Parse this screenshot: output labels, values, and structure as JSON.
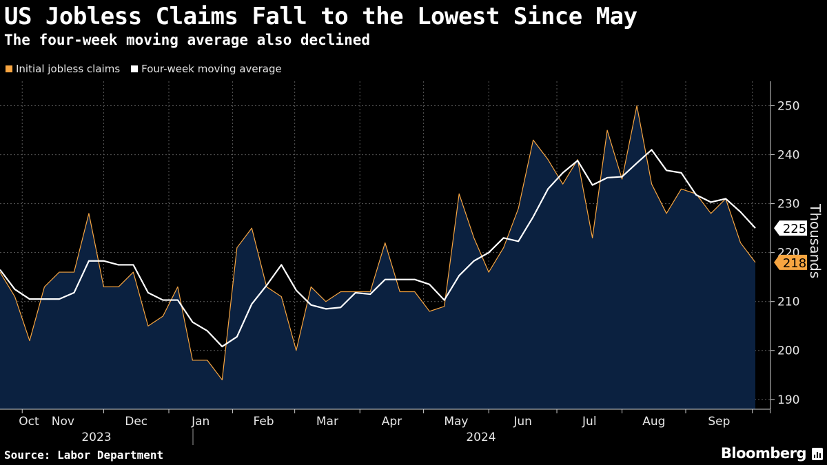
{
  "chart_data": {
    "type": "line",
    "title": "US Jobless Claims Fall to the Lowest Since May",
    "subtitle": "The four-week moving average also declined",
    "ylabel": "Thousands",
    "ylim": [
      188,
      255
    ],
    "yticks": [
      190,
      200,
      210,
      220,
      230,
      240,
      250
    ],
    "month_labels": [
      "Oct",
      "Nov",
      "Dec",
      "Jan",
      "Feb",
      "Mar",
      "Apr",
      "May",
      "Jun",
      "Jul",
      "Aug",
      "Sep"
    ],
    "year_labels": [
      "2023",
      "2024"
    ],
    "series": [
      {
        "name": "Initial jobless claims",
        "color": "#f7a541",
        "last_value_label": "218",
        "values": [
          216,
          211,
          202,
          213,
          216,
          216,
          228,
          213,
          213,
          216,
          205,
          207,
          213,
          198,
          198,
          194,
          221,
          225,
          213,
          211,
          200,
          213,
          210,
          212,
          212,
          212,
          222,
          212,
          212,
          208,
          209,
          232,
          223,
          216,
          221,
          229,
          243,
          239,
          234,
          239,
          223,
          245,
          235,
          250,
          234,
          228,
          233,
          232,
          228,
          231,
          222,
          218
        ]
      },
      {
        "name": "Four-week moving average",
        "color": "#ffffff",
        "last_value_label": "225",
        "values": [
          216.5,
          212.5,
          210.5,
          210.5,
          210.5,
          211.8,
          218.3,
          218.3,
          217.5,
          217.5,
          211.8,
          210.3,
          210.3,
          205.8,
          204,
          200.8,
          202.8,
          209.5,
          213.3,
          217.5,
          212.3,
          209.3,
          208.5,
          208.8,
          211.8,
          211.5,
          214.5,
          214.5,
          214.5,
          213.5,
          210.3,
          215.3,
          218.3,
          220,
          223,
          222.3,
          227.3,
          233,
          236.3,
          238.8,
          233.8,
          235.3,
          235.5,
          238.3,
          241,
          236.8,
          236.3,
          231.8,
          230.3,
          231,
          228.3,
          225
        ]
      }
    ]
  },
  "footer": {
    "source": "Source: Labor Department",
    "brand": "Bloomberg"
  }
}
